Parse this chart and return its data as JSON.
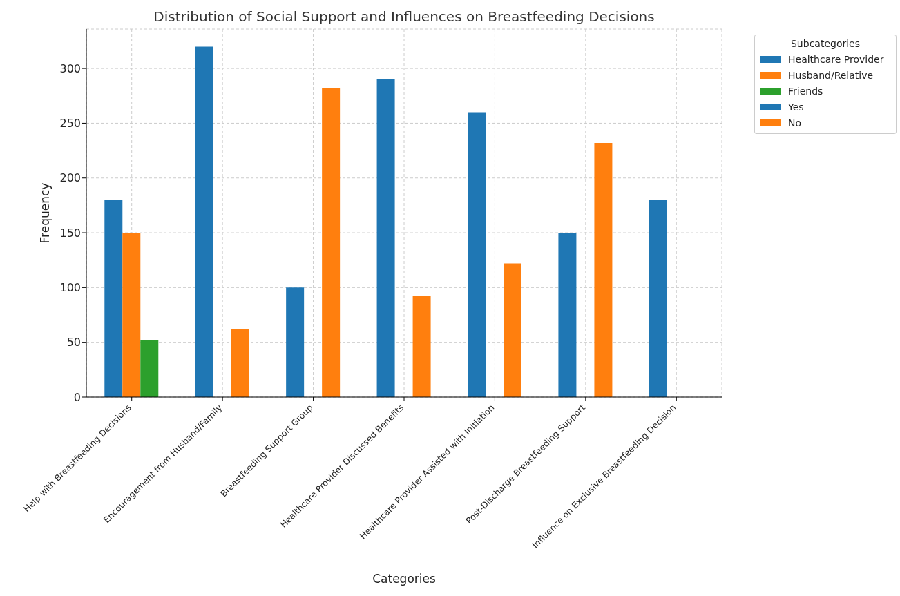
{
  "chart_data": {
    "type": "bar",
    "title": "Distribution of Social Support and Influences on Breastfeeding Decisions",
    "xlabel": "Categories",
    "ylabel": "Frequency",
    "legend_title": "Subcategories",
    "categories": [
      "Help with Breastfeeding Decisions",
      "Encouragement from Husband/Family",
      "Breastfeeding Support Group",
      "Healthcare Provider Discussed Benefits",
      "Healthcare Provider Assisted with Initiation",
      "Post-Discharge Breastfeeding Support",
      "Influence on Exclusive Breastfeeding Decision"
    ],
    "series": [
      {
        "name": "Healthcare Provider",
        "color": "#1f77b4",
        "values": [
          180,
          null,
          null,
          null,
          null,
          null,
          null
        ]
      },
      {
        "name": "Husband/Relative",
        "color": "#ff7f0e",
        "values": [
          150,
          null,
          null,
          null,
          null,
          null,
          null
        ]
      },
      {
        "name": "Friends",
        "color": "#2ca02c",
        "values": [
          52,
          null,
          null,
          null,
          null,
          null,
          null
        ]
      },
      {
        "name": "Yes",
        "color": "#1f77b4",
        "values": [
          null,
          320,
          100,
          290,
          260,
          150,
          180
        ]
      },
      {
        "name": "No",
        "color": "#ff7f0e",
        "values": [
          null,
          62,
          282,
          92,
          122,
          232,
          null
        ]
      }
    ],
    "ylim": [
      0,
      336
    ],
    "yticks": [
      0,
      50,
      100,
      150,
      200,
      250,
      300
    ],
    "grid": true,
    "legend": "top right"
  }
}
